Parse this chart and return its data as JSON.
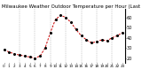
{
  "title": "Milwaukee Weather Outdoor Temperature per Hour (Last 24 Hours)",
  "hours": [
    0,
    1,
    2,
    3,
    4,
    5,
    6,
    7,
    8,
    9,
    10,
    11,
    12,
    13,
    14,
    15,
    16,
    17,
    18,
    19,
    20,
    21,
    22,
    23
  ],
  "temps": [
    28,
    26,
    24,
    23,
    22,
    21,
    20,
    22,
    30,
    45,
    58,
    62,
    60,
    55,
    48,
    42,
    38,
    35,
    36,
    38,
    37,
    40,
    42,
    45
  ],
  "line_color": "#cc0000",
  "marker_color": "#000000",
  "bg_color": "#ffffff",
  "grid_color": "#888888",
  "title_color": "#000000",
  "ylim": [
    15,
    68
  ],
  "ytick_values": [
    20,
    30,
    40,
    50,
    60
  ],
  "ytick_labels": [
    "20",
    "30",
    "40",
    "50",
    "60"
  ],
  "vgrid_hours": [
    3,
    6,
    9,
    12,
    15,
    18,
    21
  ],
  "ylabel_fontsize": 3.5,
  "title_fontsize": 4.0,
  "xlabel_fontsize": 3.0,
  "line_width": 0.7,
  "marker_size": 1.2
}
